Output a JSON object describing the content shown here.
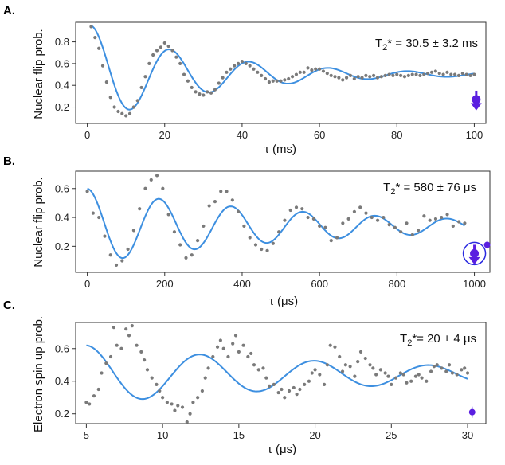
{
  "chart_data": [
    {
      "type": "scatter",
      "panel": "A.",
      "xlabel": "τ (ms)",
      "ylabel": "Nuclear flip prob.",
      "xlim": [
        -3,
        103
      ],
      "ylim": [
        0.05,
        0.98
      ],
      "xticks": [
        0,
        20,
        40,
        60,
        80,
        100
      ],
      "yticks": [
        0.2,
        0.4,
        0.6,
        0.8
      ],
      "annotation": {
        "prefix": "T",
        "sub": "2",
        "suffix": "* = 30.5 ± 3.2 ms"
      },
      "fit": {
        "offset": 0.5,
        "amp": 0.45,
        "period_units": 20.5,
        "tau": 30.5,
        "start": 1
      },
      "data": {
        "x": [
          1,
          2,
          3,
          4,
          5,
          6,
          7,
          8,
          9,
          10,
          11,
          12,
          13,
          14,
          15,
          16,
          17,
          18,
          19,
          20,
          21,
          22,
          23,
          24,
          25,
          26,
          27,
          28,
          29,
          30,
          31,
          32,
          33,
          34,
          35,
          36,
          37,
          38,
          39,
          40,
          41,
          42,
          43,
          44,
          45,
          46,
          47,
          48,
          49,
          50,
          51,
          52,
          53,
          54,
          55,
          56,
          57,
          58,
          59,
          60,
          61,
          62,
          63,
          64,
          65,
          66,
          67,
          68,
          69,
          70,
          71,
          72,
          73,
          74,
          75,
          76,
          77,
          78,
          79,
          80,
          81,
          82,
          83,
          84,
          85,
          86,
          87,
          88,
          89,
          90,
          91,
          92,
          93,
          94,
          95,
          96,
          97,
          98,
          99,
          100
        ],
        "y": [
          0.94,
          0.84,
          0.74,
          0.58,
          0.43,
          0.29,
          0.2,
          0.16,
          0.14,
          0.12,
          0.14,
          0.2,
          0.26,
          0.38,
          0.48,
          0.6,
          0.68,
          0.72,
          0.75,
          0.79,
          0.76,
          0.72,
          0.66,
          0.6,
          0.5,
          0.44,
          0.38,
          0.34,
          0.32,
          0.31,
          0.34,
          0.33,
          0.36,
          0.42,
          0.47,
          0.52,
          0.55,
          0.58,
          0.6,
          0.62,
          0.6,
          0.58,
          0.55,
          0.52,
          0.49,
          0.46,
          0.43,
          0.44,
          0.44,
          0.44,
          0.45,
          0.46,
          0.48,
          0.5,
          0.52,
          0.52,
          0.56,
          0.54,
          0.55,
          0.55,
          0.53,
          0.51,
          0.49,
          0.48,
          0.47,
          0.45,
          0.47,
          0.49,
          0.46,
          0.48,
          0.47,
          0.49,
          0.48,
          0.49,
          0.47,
          0.48,
          0.49,
          0.5,
          0.49,
          0.5,
          0.49,
          0.48,
          0.49,
          0.5,
          0.5,
          0.49,
          0.5,
          0.51,
          0.52,
          0.53,
          0.51,
          0.5,
          0.52,
          0.5,
          0.5,
          0.49,
          0.51,
          0.5,
          0.49,
          0.5
        ]
      },
      "marker": {
        "x": 100.5,
        "y": 0.27,
        "style": "down-arrow"
      }
    },
    {
      "type": "scatter",
      "panel": "B.",
      "xlabel": "τ (μs)",
      "ylabel": "Nuclear flip prob.",
      "xlim": [
        -30,
        1040
      ],
      "ylim": [
        0.02,
        0.72
      ],
      "xticks": [
        0,
        200,
        400,
        600,
        800,
        1000
      ],
      "yticks": [
        0.2,
        0.4,
        0.6
      ],
      "annotation": {
        "prefix": "T",
        "sub": "2",
        "suffix": "* = 580 ± 76 μs"
      },
      "fit": {
        "offset": 0.34,
        "amp": 0.26,
        "period_units": 186,
        "tau": 580,
        "start": 0
      },
      "data": {
        "x": [
          0,
          15,
          30,
          45,
          60,
          75,
          90,
          105,
          120,
          135,
          150,
          165,
          180,
          195,
          210,
          225,
          240,
          255,
          270,
          285,
          300,
          315,
          330,
          345,
          360,
          375,
          390,
          405,
          420,
          435,
          450,
          465,
          480,
          495,
          510,
          525,
          540,
          555,
          570,
          585,
          600,
          615,
          630,
          645,
          660,
          675,
          690,
          705,
          720,
          735,
          750,
          765,
          780,
          795,
          810,
          825,
          840,
          855,
          870,
          885,
          900,
          915,
          930,
          945,
          960,
          975
        ],
        "y": [
          0.58,
          0.43,
          0.4,
          0.27,
          0.14,
          0.07,
          0.1,
          0.18,
          0.31,
          0.46,
          0.6,
          0.66,
          0.69,
          0.6,
          0.42,
          0.3,
          0.21,
          0.12,
          0.14,
          0.24,
          0.34,
          0.48,
          0.51,
          0.58,
          0.58,
          0.52,
          0.44,
          0.34,
          0.26,
          0.21,
          0.18,
          0.17,
          0.22,
          0.3,
          0.38,
          0.45,
          0.47,
          0.46,
          0.4,
          0.39,
          0.34,
          0.33,
          0.24,
          0.26,
          0.36,
          0.39,
          0.44,
          0.47,
          0.43,
          0.4,
          0.38,
          0.4,
          0.35,
          0.33,
          0.3,
          0.36,
          0.28,
          0.31,
          0.41,
          0.38,
          0.39,
          0.4,
          0.42,
          0.34,
          0.37,
          0.36
        ]
      },
      "marker": {
        "x": 1000,
        "y": 0.15,
        "style": "circled-down-arrow",
        "side_x": 1033,
        "side_y": 0.21
      }
    },
    {
      "type": "scatter",
      "panel": "C.",
      "xlabel": "τ (μs)",
      "ylabel": "Electron spin up prob.",
      "xlim": [
        4.3,
        31.2
      ],
      "ylim": [
        0.14,
        0.76
      ],
      "xticks": [
        5,
        10,
        15,
        20,
        25,
        30
      ],
      "yticks": [
        0.2,
        0.4,
        0.6
      ],
      "annotation": {
        "prefix": "T",
        "sub": "2",
        "suffix": "*= 20 ± 4 μs"
      },
      "fit": {
        "offset": 0.44,
        "amp": 0.18,
        "period_units": 7.5,
        "tau": 20,
        "start": 5
      },
      "data": {
        "x": [
          5,
          5.2,
          5.5,
          5.8,
          6,
          6.3,
          6.6,
          6.8,
          7,
          7.3,
          7.6,
          7.8,
          8,
          8.3,
          8.6,
          8.8,
          9,
          9.3,
          9.6,
          9.8,
          10,
          10.3,
          10.6,
          10.8,
          11,
          11.3,
          11.6,
          11.8,
          12,
          12.3,
          12.6,
          12.8,
          13,
          13.3,
          13.6,
          13.8,
          14,
          14.3,
          14.6,
          14.8,
          15,
          15.3,
          15.6,
          15.8,
          16,
          16.3,
          16.6,
          16.8,
          17,
          17.3,
          17.6,
          17.8,
          18,
          18.3,
          18.6,
          18.8,
          19,
          19.3,
          19.6,
          19.8,
          20,
          20.3,
          20.6,
          20.8,
          21,
          21.3,
          21.6,
          21.8,
          22,
          22.3,
          22.6,
          22.8,
          23,
          23.3,
          23.6,
          23.8,
          24,
          24.3,
          24.6,
          24.8,
          25,
          25.3,
          25.6,
          25.8,
          26,
          26.3,
          26.6,
          26.8,
          27,
          27.3,
          27.6,
          27.8,
          28,
          28.3,
          28.6,
          28.8,
          29,
          29.3,
          29.6,
          29.8,
          30
        ],
        "y": [
          0.27,
          0.26,
          0.31,
          0.35,
          0.45,
          0.51,
          0.55,
          0.73,
          0.62,
          0.6,
          0.72,
          0.68,
          0.74,
          0.62,
          0.58,
          0.53,
          0.47,
          0.42,
          0.38,
          0.34,
          0.3,
          0.27,
          0.26,
          0.22,
          0.25,
          0.24,
          0.15,
          0.2,
          0.27,
          0.3,
          0.34,
          0.42,
          0.48,
          0.55,
          0.61,
          0.65,
          0.6,
          0.55,
          0.63,
          0.68,
          0.58,
          0.62,
          0.55,
          0.57,
          0.5,
          0.47,
          0.48,
          0.42,
          0.37,
          0.38,
          0.33,
          0.35,
          0.3,
          0.34,
          0.36,
          0.32,
          0.35,
          0.38,
          0.4,
          0.45,
          0.47,
          0.44,
          0.38,
          0.5,
          0.62,
          0.61,
          0.55,
          0.46,
          0.5,
          0.49,
          0.43,
          0.52,
          0.58,
          0.54,
          0.5,
          0.48,
          0.44,
          0.47,
          0.45,
          0.43,
          0.38,
          0.42,
          0.45,
          0.44,
          0.39,
          0.4,
          0.43,
          0.44,
          0.42,
          0.4,
          0.46,
          0.49,
          0.5,
          0.48,
          0.46,
          0.5,
          0.45,
          0.44,
          0.47,
          0.48,
          0.45
        ]
      },
      "marker": {
        "x": 30.3,
        "y": 0.21,
        "style": "dot"
      }
    }
  ]
}
